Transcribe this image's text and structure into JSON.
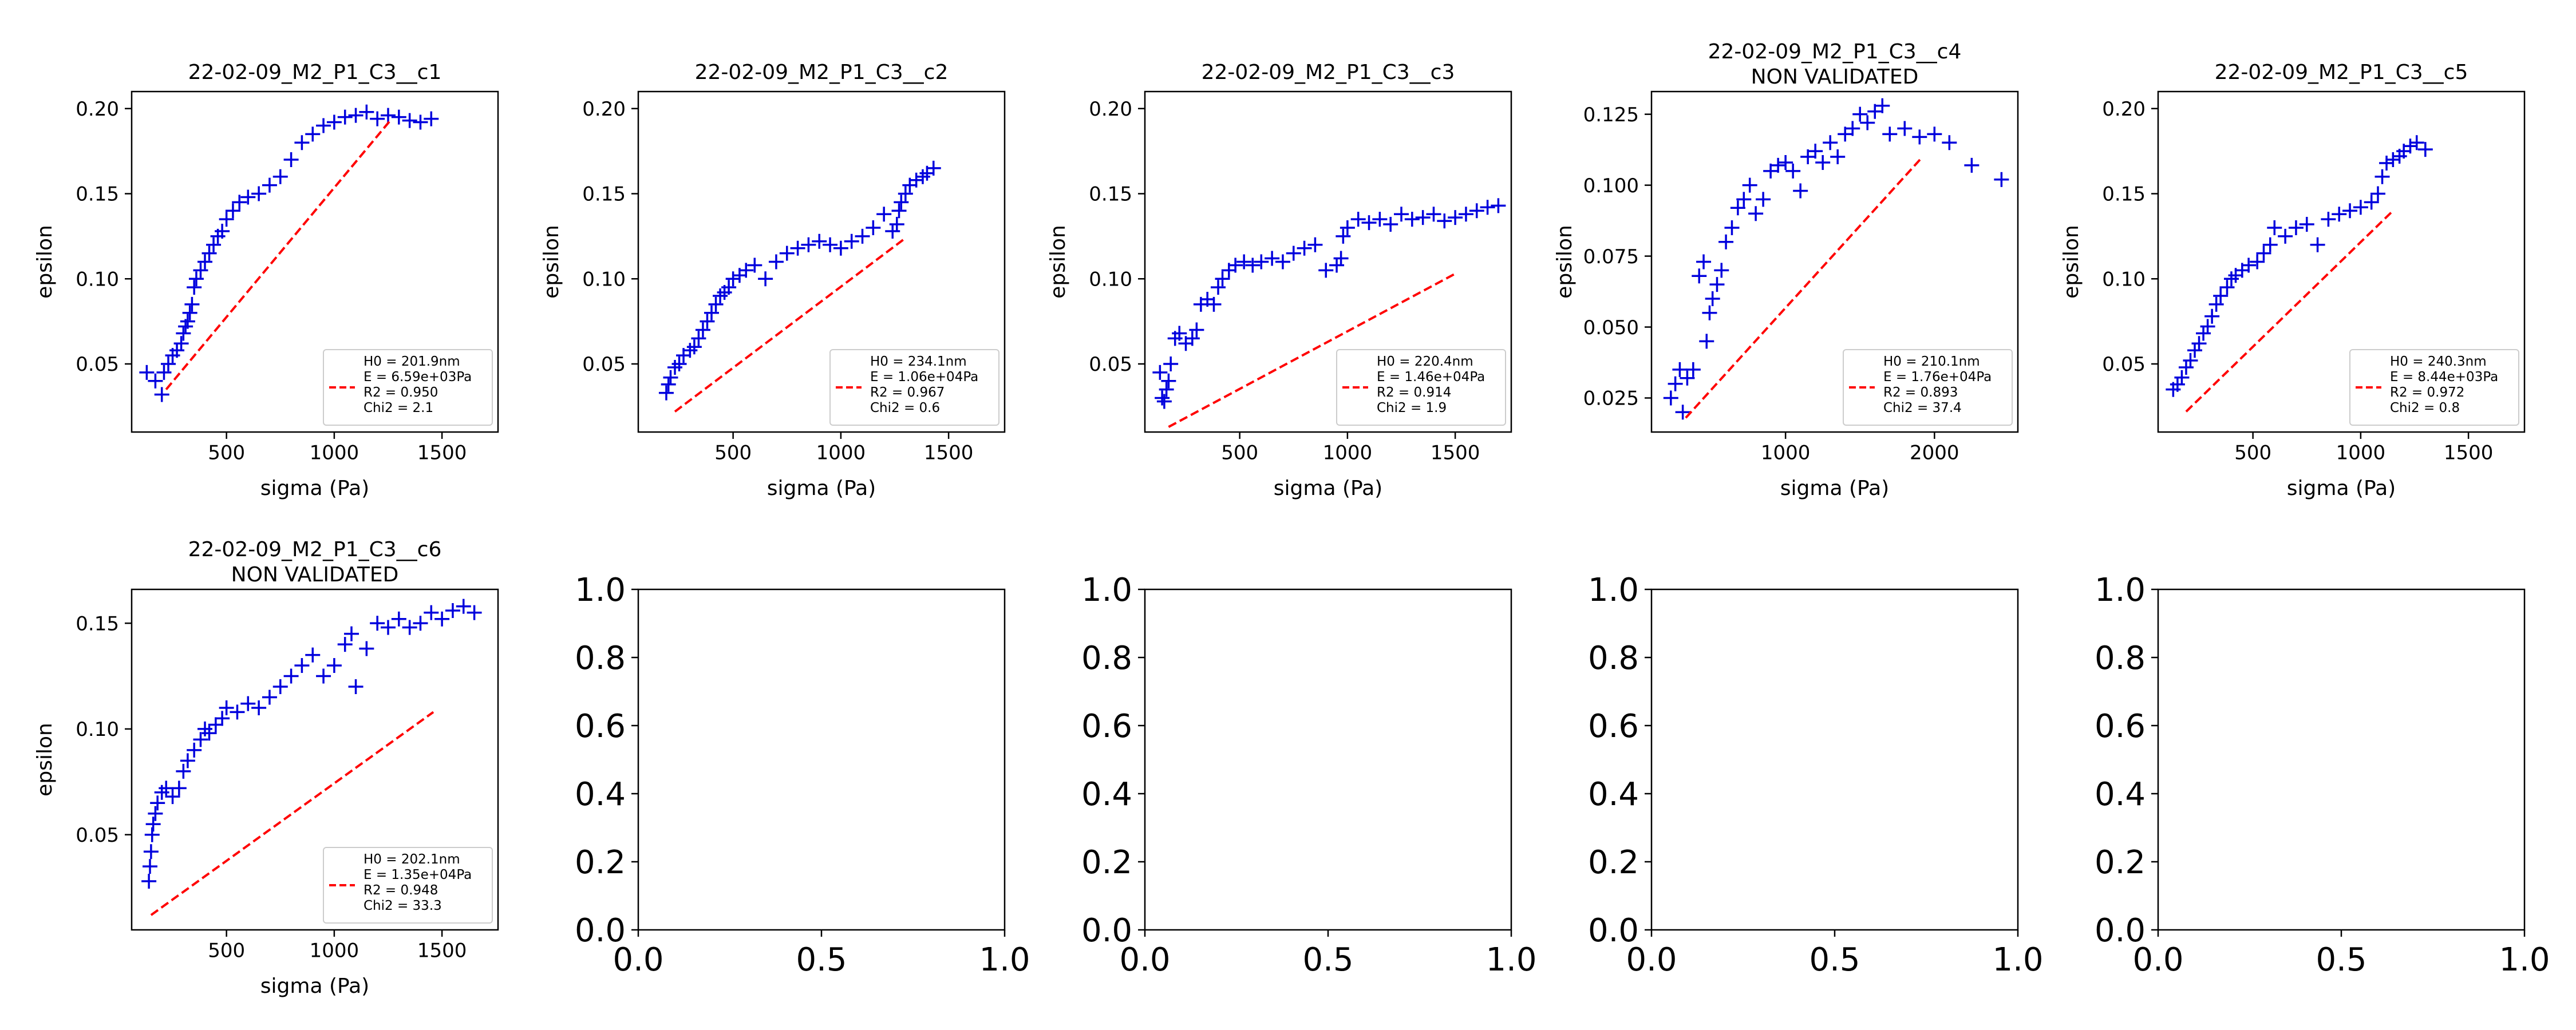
{
  "figure": {
    "background": "#ffffff"
  },
  "chart_data": [
    {
      "type": "scatter",
      "title": "22-02-09_M2_P1_C3__c1",
      "xlabel": "sigma (Pa)",
      "ylabel": "epsilon",
      "xlim": [
        60,
        1760
      ],
      "ylim": [
        0.01,
        0.21
      ],
      "xticks": [
        500,
        1000,
        1500
      ],
      "xtick_labels": [
        "500",
        "1000",
        "1500"
      ],
      "yticks": [
        0.05,
        0.1,
        0.15,
        0.2
      ],
      "ytick_labels": [
        "0.05",
        "0.10",
        "0.15",
        "0.20"
      ],
      "grid": false,
      "legend_position": "lower right",
      "legend_lines": [
        "H0 = 201.9nm",
        "E = 6.59e+03Pa",
        "R2 = 0.950",
        "Chi2 = 2.1"
      ],
      "series": [
        {
          "marker": "+",
          "color": "#0000dd",
          "x": [
            130,
            170,
            200,
            210,
            230,
            250,
            270,
            290,
            300,
            310,
            320,
            330,
            340,
            350,
            360,
            380,
            400,
            420,
            440,
            460,
            480,
            500,
            530,
            560,
            600,
            650,
            700,
            750,
            800,
            850,
            900,
            950,
            1000,
            1050,
            1100,
            1150,
            1200,
            1250,
            1300,
            1350,
            1400,
            1450
          ],
          "y": [
            0.045,
            0.04,
            0.032,
            0.045,
            0.05,
            0.055,
            0.058,
            0.062,
            0.068,
            0.072,
            0.075,
            0.08,
            0.085,
            0.095,
            0.1,
            0.105,
            0.11,
            0.115,
            0.12,
            0.125,
            0.128,
            0.135,
            0.14,
            0.145,
            0.148,
            0.15,
            0.155,
            0.16,
            0.17,
            0.18,
            0.185,
            0.19,
            0.192,
            0.195,
            0.196,
            0.198,
            0.194,
            0.196,
            0.195,
            0.193,
            0.192,
            0.194
          ]
        },
        {
          "style": "dashed",
          "color": "#ff0000",
          "x": [
            220,
            1260
          ],
          "y": [
            0.035,
            0.193
          ]
        }
      ]
    },
    {
      "type": "scatter",
      "title": "22-02-09_M2_P1_C3__c2",
      "xlabel": "sigma (Pa)",
      "ylabel": "epsilon",
      "xlim": [
        60,
        1760
      ],
      "ylim": [
        0.01,
        0.21
      ],
      "xticks": [
        500,
        1000,
        1500
      ],
      "xtick_labels": [
        "500",
        "1000",
        "1500"
      ],
      "yticks": [
        0.05,
        0.1,
        0.15,
        0.2
      ],
      "ytick_labels": [
        "0.05",
        "0.10",
        "0.15",
        "0.20"
      ],
      "grid": false,
      "legend_position": "lower right",
      "legend_lines": [
        "H0 = 234.1nm",
        "E = 1.06e+04Pa",
        "R2 = 0.967",
        "Chi2 = 0.6"
      ],
      "series": [
        {
          "marker": "+",
          "color": "#0000dd",
          "x": [
            190,
            200,
            210,
            230,
            250,
            270,
            300,
            320,
            340,
            360,
            380,
            400,
            420,
            440,
            460,
            480,
            500,
            530,
            560,
            600,
            650,
            700,
            750,
            800,
            850,
            900,
            950,
            1000,
            1050,
            1100,
            1150,
            1200,
            1240,
            1260,
            1270,
            1280,
            1300,
            1320,
            1350,
            1380,
            1400,
            1430
          ],
          "y": [
            0.033,
            0.038,
            0.042,
            0.048,
            0.05,
            0.055,
            0.058,
            0.06,
            0.065,
            0.07,
            0.075,
            0.08,
            0.085,
            0.09,
            0.092,
            0.095,
            0.1,
            0.102,
            0.105,
            0.108,
            0.1,
            0.11,
            0.115,
            0.118,
            0.12,
            0.122,
            0.12,
            0.118,
            0.122,
            0.125,
            0.13,
            0.138,
            0.128,
            0.132,
            0.14,
            0.145,
            0.15,
            0.155,
            0.158,
            0.16,
            0.162,
            0.165
          ]
        },
        {
          "style": "dashed",
          "color": "#ff0000",
          "x": [
            230,
            1290
          ],
          "y": [
            0.022,
            0.123
          ]
        }
      ]
    },
    {
      "type": "scatter",
      "title": "22-02-09_M2_P1_C3__c3",
      "xlabel": "sigma (Pa)",
      "ylabel": "epsilon",
      "xlim": [
        60,
        1760
      ],
      "ylim": [
        0.01,
        0.21
      ],
      "xticks": [
        500,
        1000,
        1500
      ],
      "xtick_labels": [
        "500",
        "1000",
        "1500"
      ],
      "yticks": [
        0.05,
        0.1,
        0.15,
        0.2
      ],
      "ytick_labels": [
        "0.05",
        "0.10",
        "0.15",
        "0.20"
      ],
      "grid": false,
      "legend_position": "lower right",
      "legend_lines": [
        "H0 = 220.4nm",
        "E = 1.46e+04Pa",
        "R2 = 0.914",
        "Chi2 = 1.9"
      ],
      "series": [
        {
          "marker": "+",
          "color": "#0000dd",
          "x": [
            130,
            140,
            150,
            160,
            170,
            180,
            200,
            220,
            250,
            280,
            300,
            320,
            350,
            380,
            400,
            420,
            450,
            480,
            520,
            560,
            600,
            650,
            700,
            750,
            800,
            850,
            900,
            950,
            970,
            980,
            1000,
            1050,
            1100,
            1150,
            1200,
            1250,
            1300,
            1350,
            1400,
            1450,
            1500,
            1550,
            1600,
            1650,
            1700
          ],
          "y": [
            0.045,
            0.03,
            0.028,
            0.035,
            0.04,
            0.05,
            0.065,
            0.068,
            0.062,
            0.065,
            0.07,
            0.085,
            0.088,
            0.085,
            0.095,
            0.1,
            0.105,
            0.108,
            0.11,
            0.108,
            0.11,
            0.112,
            0.11,
            0.115,
            0.118,
            0.12,
            0.105,
            0.108,
            0.112,
            0.125,
            0.13,
            0.135,
            0.133,
            0.135,
            0.132,
            0.138,
            0.135,
            0.136,
            0.138,
            0.134,
            0.136,
            0.138,
            0.14,
            0.142,
            0.143
          ]
        },
        {
          "style": "dashed",
          "color": "#ff0000",
          "x": [
            170,
            1500
          ],
          "y": [
            0.013,
            0.103
          ]
        }
      ]
    },
    {
      "type": "scatter",
      "title": "22-02-09_M2_P1_C3__c4",
      "subtitle": "NON VALIDATED",
      "xlabel": "sigma (Pa)",
      "ylabel": "epsilon",
      "xlim": [
        100,
        2560
      ],
      "ylim": [
        0.013,
        0.133
      ],
      "xticks": [
        1000,
        2000
      ],
      "xtick_labels": [
        "1000",
        "2000"
      ],
      "yticks": [
        0.025,
        0.05,
        0.075,
        0.1,
        0.125
      ],
      "ytick_labels": [
        "0.025",
        "0.050",
        "0.075",
        "0.100",
        "0.125"
      ],
      "grid": false,
      "legend_position": "lower right",
      "legend_lines": [
        "H0 = 210.1nm",
        "E = 1.76e+04Pa",
        "R2 = 0.893",
        "Chi2 = 37.4"
      ],
      "series": [
        {
          "marker": "+",
          "color": "#0000dd",
          "x": [
            230,
            260,
            290,
            310,
            340,
            380,
            420,
            450,
            470,
            490,
            510,
            540,
            570,
            600,
            640,
            680,
            720,
            760,
            800,
            850,
            900,
            950,
            1000,
            1050,
            1100,
            1150,
            1200,
            1250,
            1300,
            1350,
            1400,
            1450,
            1500,
            1550,
            1600,
            1650,
            1700,
            1800,
            1900,
            2000,
            2100,
            2250,
            2450
          ],
          "y": [
            0.025,
            0.03,
            0.035,
            0.02,
            0.032,
            0.035,
            0.068,
            0.073,
            0.045,
            0.055,
            0.06,
            0.065,
            0.07,
            0.08,
            0.085,
            0.092,
            0.095,
            0.1,
            0.09,
            0.095,
            0.105,
            0.107,
            0.108,
            0.105,
            0.098,
            0.11,
            0.112,
            0.108,
            0.115,
            0.11,
            0.118,
            0.12,
            0.125,
            0.122,
            0.126,
            0.128,
            0.118,
            0.12,
            0.117,
            0.118,
            0.115,
            0.107,
            0.102
          ]
        },
        {
          "style": "dashed",
          "color": "#ff0000",
          "x": [
            330,
            1920
          ],
          "y": [
            0.018,
            0.11
          ]
        }
      ]
    },
    {
      "type": "scatter",
      "title": "22-02-09_M2_P1_C3__c5",
      "xlabel": "sigma (Pa)",
      "ylabel": "epsilon",
      "xlim": [
        60,
        1760
      ],
      "ylim": [
        0.01,
        0.21
      ],
      "xticks": [
        500,
        1000,
        1500
      ],
      "xtick_labels": [
        "500",
        "1000",
        "1500"
      ],
      "yticks": [
        0.05,
        0.1,
        0.15,
        0.2
      ],
      "ytick_labels": [
        "0.05",
        "0.10",
        "0.15",
        "0.20"
      ],
      "grid": false,
      "legend_position": "lower right",
      "legend_lines": [
        "H0 = 240.3nm",
        "E = 8.44e+03Pa",
        "R2 = 0.972",
        "Chi2 = 0.8"
      ],
      "series": [
        {
          "marker": "+",
          "color": "#0000dd",
          "x": [
            130,
            150,
            170,
            190,
            210,
            230,
            250,
            270,
            290,
            310,
            330,
            350,
            380,
            400,
            420,
            450,
            480,
            520,
            550,
            580,
            600,
            650,
            700,
            750,
            800,
            850,
            900,
            950,
            1000,
            1050,
            1080,
            1100,
            1120,
            1150,
            1180,
            1200,
            1230,
            1260,
            1300
          ],
          "y": [
            0.035,
            0.038,
            0.042,
            0.048,
            0.052,
            0.058,
            0.062,
            0.068,
            0.072,
            0.078,
            0.085,
            0.09,
            0.095,
            0.1,
            0.102,
            0.105,
            0.108,
            0.11,
            0.115,
            0.12,
            0.13,
            0.125,
            0.13,
            0.132,
            0.12,
            0.135,
            0.138,
            0.14,
            0.142,
            0.145,
            0.15,
            0.16,
            0.168,
            0.17,
            0.172,
            0.175,
            0.178,
            0.18,
            0.176
          ]
        },
        {
          "style": "dashed",
          "color": "#ff0000",
          "x": [
            190,
            1150
          ],
          "y": [
            0.022,
            0.14
          ]
        }
      ]
    },
    {
      "type": "scatter",
      "title": "22-02-09_M2_P1_C3__c6",
      "subtitle": "NON VALIDATED",
      "xlabel": "sigma (Pa)",
      "ylabel": "epsilon",
      "xlim": [
        60,
        1760
      ],
      "ylim": [
        0.005,
        0.166
      ],
      "xticks": [
        500,
        1000,
        1500
      ],
      "xtick_labels": [
        "500",
        "1000",
        "1500"
      ],
      "yticks": [
        0.05,
        0.1,
        0.15
      ],
      "ytick_labels": [
        "0.05",
        "0.10",
        "0.15"
      ],
      "grid": false,
      "legend_position": "lower right",
      "legend_lines": [
        "H0 = 202.1nm",
        "E = 1.35e+04Pa",
        "R2 = 0.948",
        "Chi2 = 33.3"
      ],
      "series": [
        {
          "marker": "+",
          "color": "#0000dd",
          "x": [
            140,
            145,
            150,
            155,
            160,
            170,
            180,
            200,
            220,
            250,
            280,
            300,
            320,
            350,
            380,
            400,
            420,
            450,
            480,
            500,
            550,
            600,
            650,
            700,
            750,
            800,
            850,
            900,
            950,
            1000,
            1050,
            1080,
            1100,
            1150,
            1200,
            1250,
            1300,
            1350,
            1400,
            1450,
            1500,
            1550,
            1600,
            1650
          ],
          "y": [
            0.028,
            0.035,
            0.042,
            0.05,
            0.055,
            0.06,
            0.065,
            0.07,
            0.072,
            0.068,
            0.072,
            0.08,
            0.085,
            0.09,
            0.095,
            0.1,
            0.098,
            0.102,
            0.105,
            0.11,
            0.108,
            0.112,
            0.11,
            0.115,
            0.12,
            0.125,
            0.13,
            0.135,
            0.125,
            0.13,
            0.14,
            0.145,
            0.12,
            0.138,
            0.15,
            0.148,
            0.152,
            0.148,
            0.15,
            0.155,
            0.152,
            0.156,
            0.158,
            0.155
          ]
        },
        {
          "style": "dashed",
          "color": "#ff0000",
          "x": [
            150,
            1460
          ],
          "y": [
            0.012,
            0.108
          ]
        }
      ]
    },
    {
      "type": "scatter",
      "title": "",
      "xlim": [
        0,
        1
      ],
      "ylim": [
        0,
        1
      ],
      "xticks": [
        0,
        0.5,
        1
      ],
      "xtick_labels": [
        "0.0",
        "0.5",
        "1.0"
      ],
      "yticks": [
        0,
        0.2,
        0.4,
        0.6,
        0.8,
        1
      ],
      "ytick_labels": [
        "0.0",
        "0.2",
        "0.4",
        "0.6",
        "0.8",
        "1.0"
      ],
      "series": []
    },
    {
      "type": "scatter",
      "title": "",
      "xlim": [
        0,
        1
      ],
      "ylim": [
        0,
        1
      ],
      "xticks": [
        0,
        0.5,
        1
      ],
      "xtick_labels": [
        "0.0",
        "0.5",
        "1.0"
      ],
      "yticks": [
        0,
        0.2,
        0.4,
        0.6,
        0.8,
        1
      ],
      "ytick_labels": [
        "0.0",
        "0.2",
        "0.4",
        "0.6",
        "0.8",
        "1.0"
      ],
      "series": []
    },
    {
      "type": "scatter",
      "title": "",
      "xlim": [
        0,
        1
      ],
      "ylim": [
        0,
        1
      ],
      "xticks": [
        0,
        0.5,
        1
      ],
      "xtick_labels": [
        "0.0",
        "0.5",
        "1.0"
      ],
      "yticks": [
        0,
        0.2,
        0.4,
        0.6,
        0.8,
        1
      ],
      "ytick_labels": [
        "0.0",
        "0.2",
        "0.4",
        "0.6",
        "0.8",
        "1.0"
      ],
      "series": []
    },
    {
      "type": "scatter",
      "title": "",
      "xlim": [
        0,
        1
      ],
      "ylim": [
        0,
        1
      ],
      "xticks": [
        0,
        0.5,
        1
      ],
      "xtick_labels": [
        "0.0",
        "0.5",
        "1.0"
      ],
      "yticks": [
        0,
        0.2,
        0.4,
        0.6,
        0.8,
        1
      ],
      "ytick_labels": [
        "0.0",
        "0.2",
        "0.4",
        "0.6",
        "0.8",
        "1.0"
      ],
      "series": []
    }
  ]
}
